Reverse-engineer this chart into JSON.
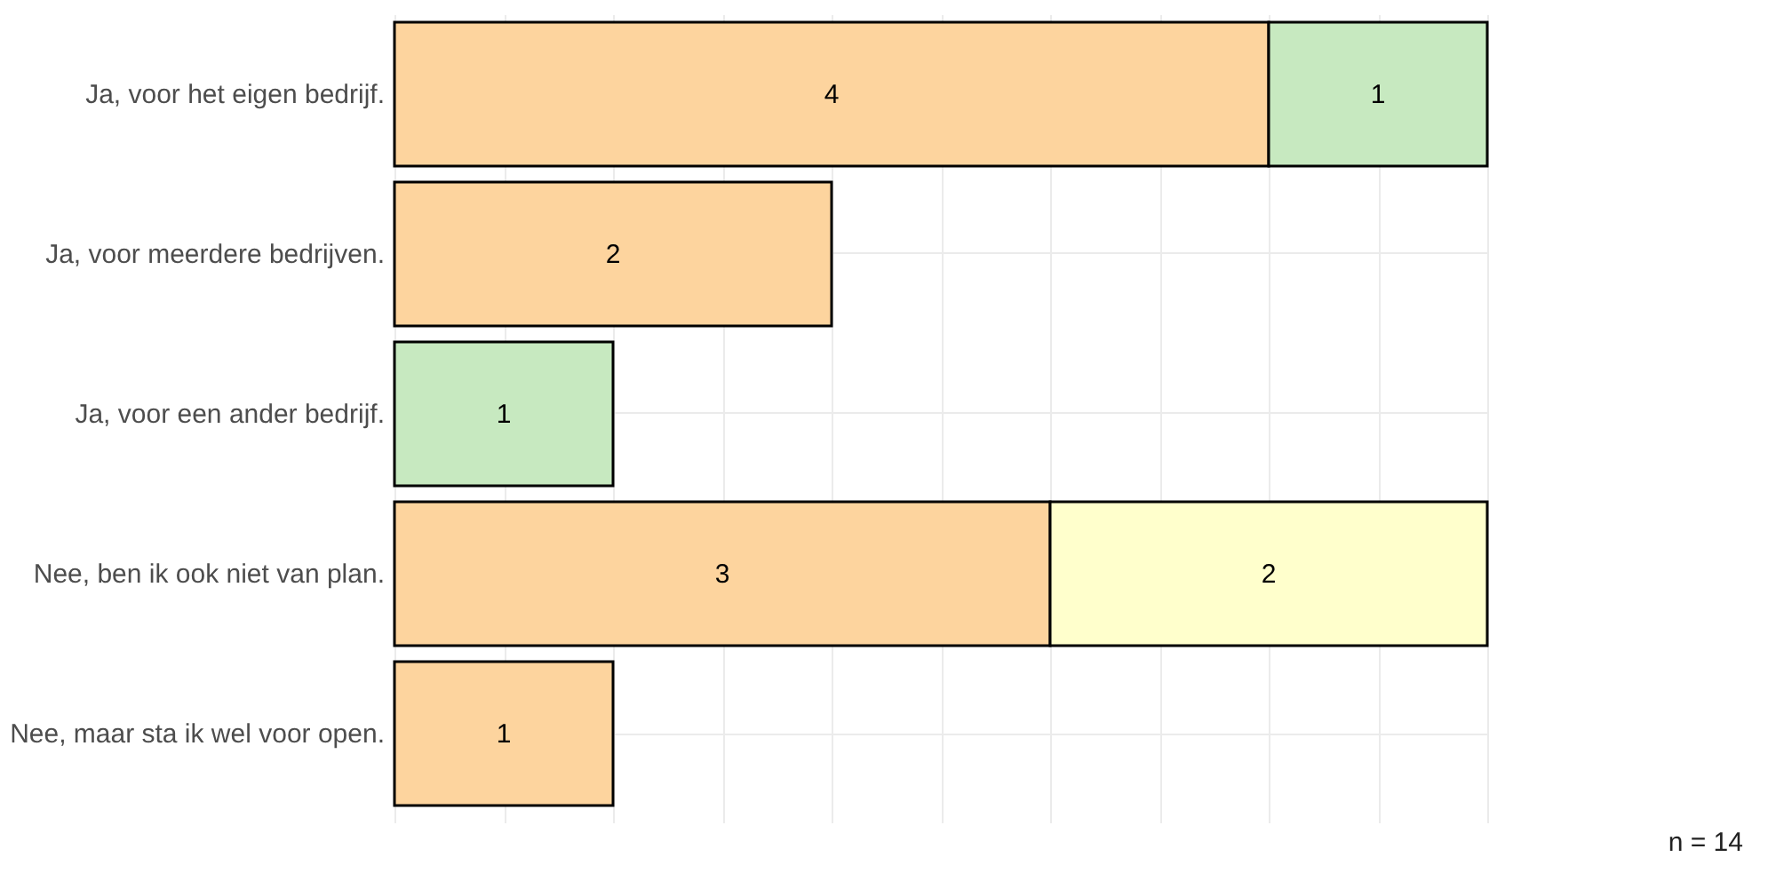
{
  "chart_data": {
    "type": "bar",
    "orientation": "horizontal",
    "stacked": true,
    "categories": [
      "Ja, voor het eigen bedrijf.",
      "Ja, voor meerdere bedrijven.",
      "Ja, voor een ander bedrijf.",
      "Nee, ben ik ook niet van plan.",
      "Nee, maar sta ik wel voor open."
    ],
    "series": [
      {
        "color": "#fdd49e",
        "values": [
          4,
          2,
          null,
          3,
          1
        ]
      },
      {
        "color": "#c7e9c0",
        "values": [
          1,
          null,
          1,
          null,
          null
        ]
      },
      {
        "color": "#ffffcc",
        "values": [
          null,
          null,
          null,
          2,
          null
        ]
      }
    ],
    "xlim": [
      0,
      5
    ],
    "xticks": [
      {
        "value": 0,
        "label": null
      },
      {
        "value": 0.5,
        "label": null
      },
      {
        "value": 1,
        "label": null
      },
      {
        "value": 1.5,
        "label": null
      },
      {
        "value": 2,
        "label": null
      },
      {
        "value": 2.5,
        "label": null
      },
      {
        "value": 3,
        "label": null
      },
      {
        "value": 3.5,
        "label": null
      },
      {
        "value": 4,
        "label": null
      },
      {
        "value": 4.5,
        "label": null
      },
      {
        "value": 5,
        "label": null
      }
    ],
    "tick_labels": "y",
    "grid": true,
    "data_labels": true,
    "annotations": [
      "n = 14"
    ]
  }
}
